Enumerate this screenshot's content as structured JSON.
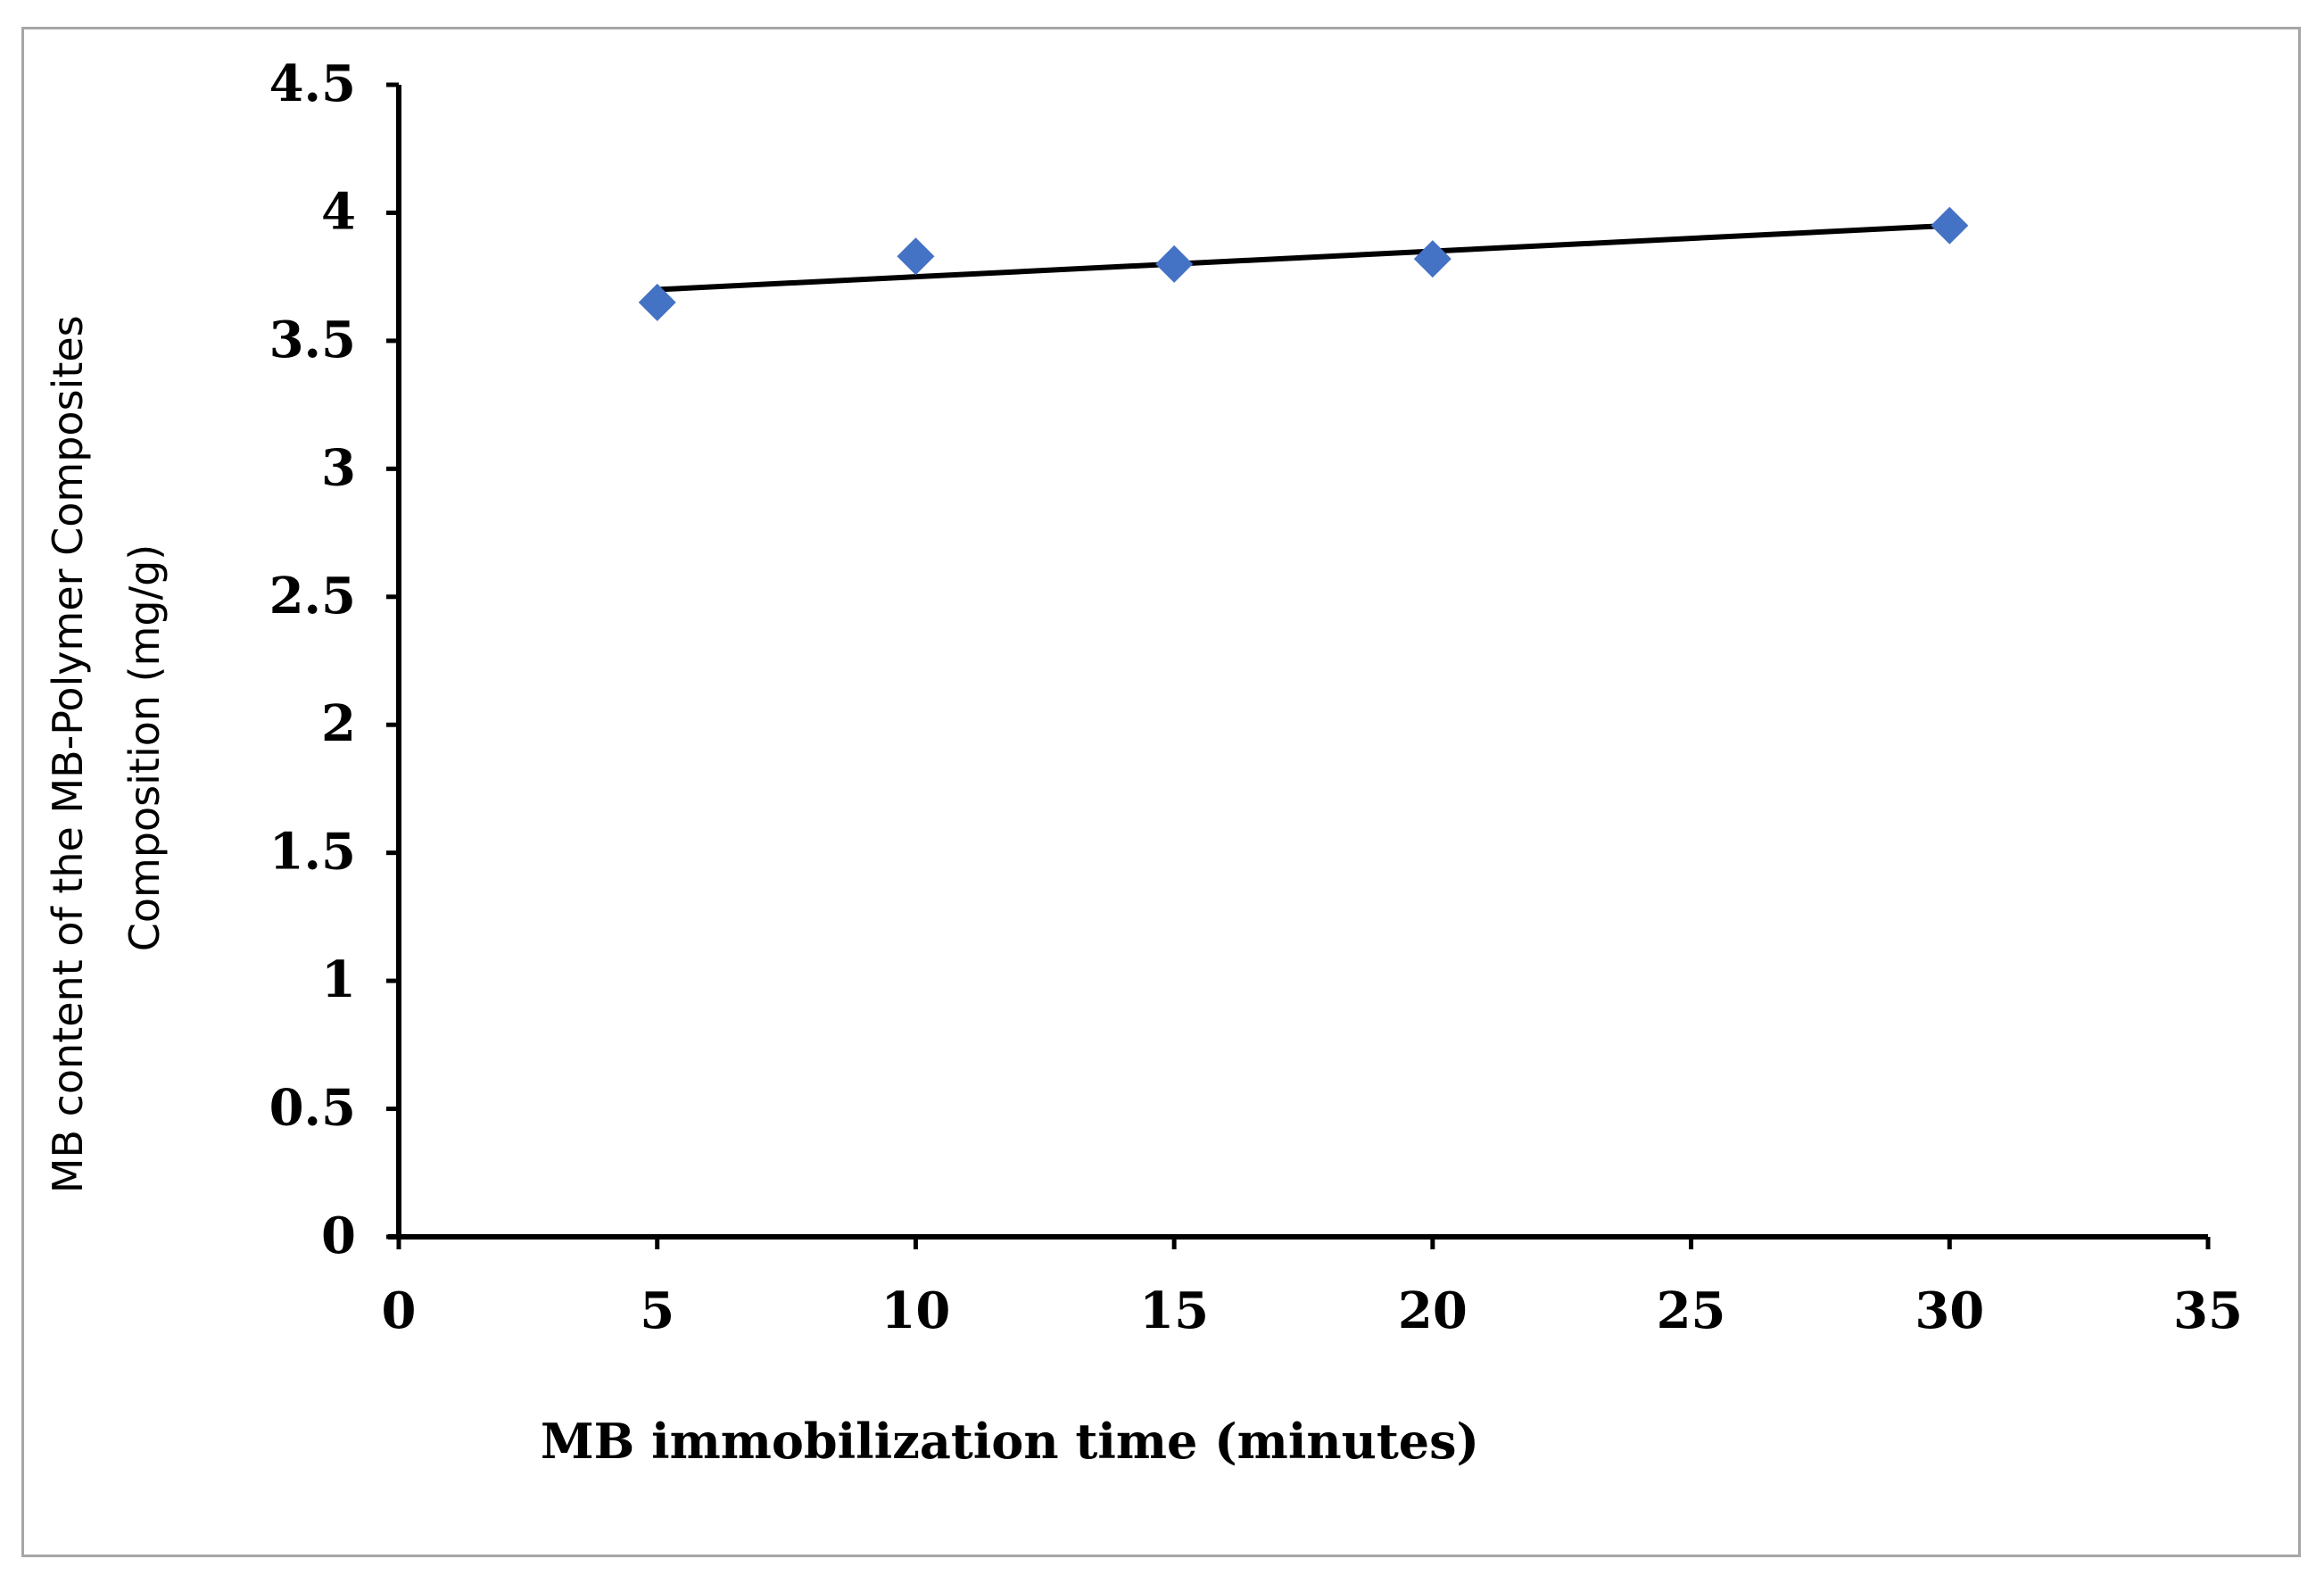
{
  "chart_data": {
    "type": "scatter",
    "title": "",
    "xlabel": "MB immobilization time (minutes)",
    "ylabel_lines": [
      "MB content of the MB-Polymer Composites",
      "Composition (mg/g)"
    ],
    "xlim": [
      0,
      35
    ],
    "ylim": [
      0,
      4.5
    ],
    "x_ticks": [
      0,
      5,
      10,
      15,
      20,
      25,
      30,
      35
    ],
    "y_ticks": [
      0,
      0.5,
      1,
      1.5,
      2,
      2.5,
      3,
      3.5,
      4,
      4.5
    ],
    "x_tick_labels": [
      "0",
      "5",
      "10",
      "15",
      "20",
      "25",
      "30",
      "35"
    ],
    "y_tick_labels": [
      "0",
      "0.5",
      "1",
      "1.5",
      "2",
      "2.5",
      "3",
      "3.5",
      "4",
      "4.5"
    ],
    "grid": false,
    "legend": "none",
    "series": [
      {
        "marker": "diamond",
        "color": "#4472c4",
        "x": [
          5,
          10,
          15,
          20,
          30
        ],
        "y": [
          3.65,
          3.83,
          3.8,
          3.82,
          3.95
        ]
      }
    ],
    "trendline": {
      "type": "linear",
      "color": "#000000",
      "x": [
        5,
        30
      ],
      "y": [
        3.7,
        3.95
      ]
    }
  }
}
